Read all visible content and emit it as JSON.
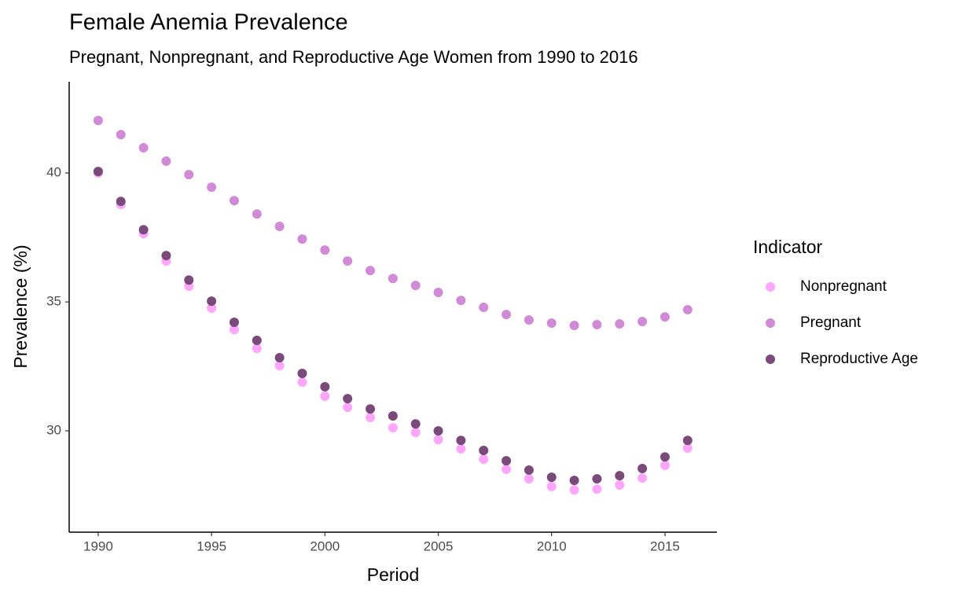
{
  "chart_data": {
    "type": "scatter",
    "title": "Female Anemia Prevalence",
    "subtitle": "Pregnant, Nonpregnant, and Reproductive Age Women from 1990 to 2016",
    "x_label": "Period",
    "y_label": "Prevalence (%)",
    "legend_title": "Indicator",
    "legend_position": "right",
    "x": [
      1990,
      1991,
      1992,
      1993,
      1994,
      1995,
      1996,
      1997,
      1998,
      1999,
      2000,
      2001,
      2002,
      2003,
      2004,
      2005,
      2006,
      2007,
      2008,
      2009,
      2010,
      2011,
      2012,
      2013,
      2014,
      2015,
      2016
    ],
    "series": [
      {
        "name": "Nonpregnant",
        "color": "#ffa6ff",
        "values": [
          40.0,
          38.78,
          37.65,
          36.59,
          35.61,
          34.76,
          33.93,
          33.2,
          32.53,
          31.89,
          31.34,
          30.91,
          30.52,
          30.12,
          29.94,
          29.66,
          29.3,
          28.9,
          28.51,
          28.14,
          27.84,
          27.71,
          27.74,
          27.9,
          28.17,
          28.66,
          29.33
        ]
      },
      {
        "name": "Pregnant",
        "color": "#d08ad6",
        "values": [
          42.04,
          41.49,
          40.98,
          40.46,
          39.94,
          39.45,
          38.93,
          38.41,
          37.93,
          37.44,
          37.01,
          36.59,
          36.22,
          35.91,
          35.64,
          35.37,
          35.06,
          34.79,
          34.51,
          34.3,
          34.18,
          34.09,
          34.12,
          34.15,
          34.24,
          34.42,
          34.7
        ]
      },
      {
        "name": "Reproductive Age",
        "color": "#7a4b7a",
        "values": [
          40.06,
          38.9,
          37.8,
          36.8,
          35.85,
          35.03,
          34.21,
          33.51,
          32.84,
          32.23,
          31.71,
          31.25,
          30.85,
          30.58,
          30.27,
          30.0,
          29.63,
          29.24,
          28.84,
          28.48,
          28.2,
          28.08,
          28.14,
          28.26,
          28.54,
          28.99,
          29.63
        ]
      }
    ],
    "xlim": [
      1988.72,
      2017.29
    ],
    "xticks": [
      1990,
      1995,
      2000,
      2005,
      2010,
      2015
    ],
    "ylim": [
      26.07,
      43.54
    ],
    "yticks": [
      30,
      35,
      40
    ],
    "grid": false
  }
}
